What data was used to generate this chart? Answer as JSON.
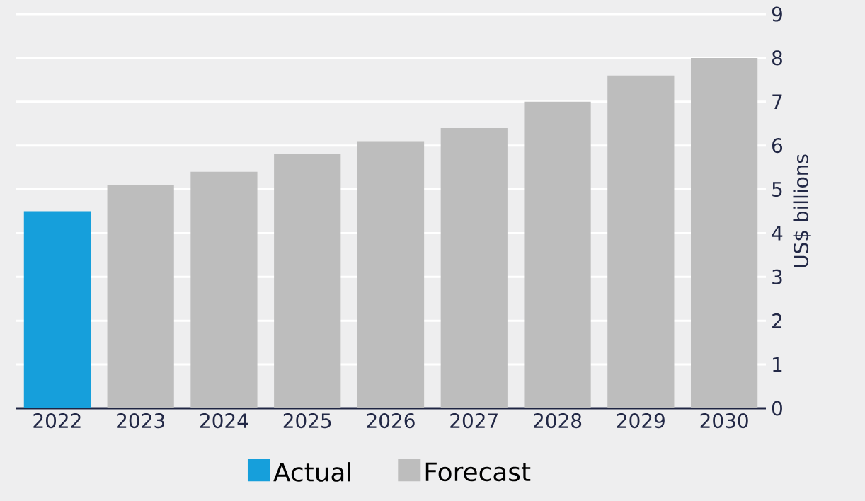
{
  "chart_data": {
    "type": "bar",
    "ylabel": "US$ billions",
    "categories": [
      "2022",
      "2023",
      "2024",
      "2025",
      "2026",
      "2027",
      "2028",
      "2029",
      "2030"
    ],
    "series": [
      {
        "name": "Actual",
        "color": "#169fdb",
        "values": [
          4.5,
          null,
          null,
          null,
          null,
          null,
          null,
          null,
          null
        ]
      },
      {
        "name": "Forecast",
        "color": "#bdbdbd",
        "values": [
          null,
          5.1,
          5.4,
          5.8,
          6.1,
          6.4,
          7.0,
          7.6,
          8.0
        ]
      }
    ],
    "ylim": [
      0,
      9
    ],
    "yticks": [
      0,
      1,
      2,
      3,
      4,
      5,
      6,
      7,
      8,
      9
    ],
    "grid": "y",
    "legend": "bottom"
  }
}
